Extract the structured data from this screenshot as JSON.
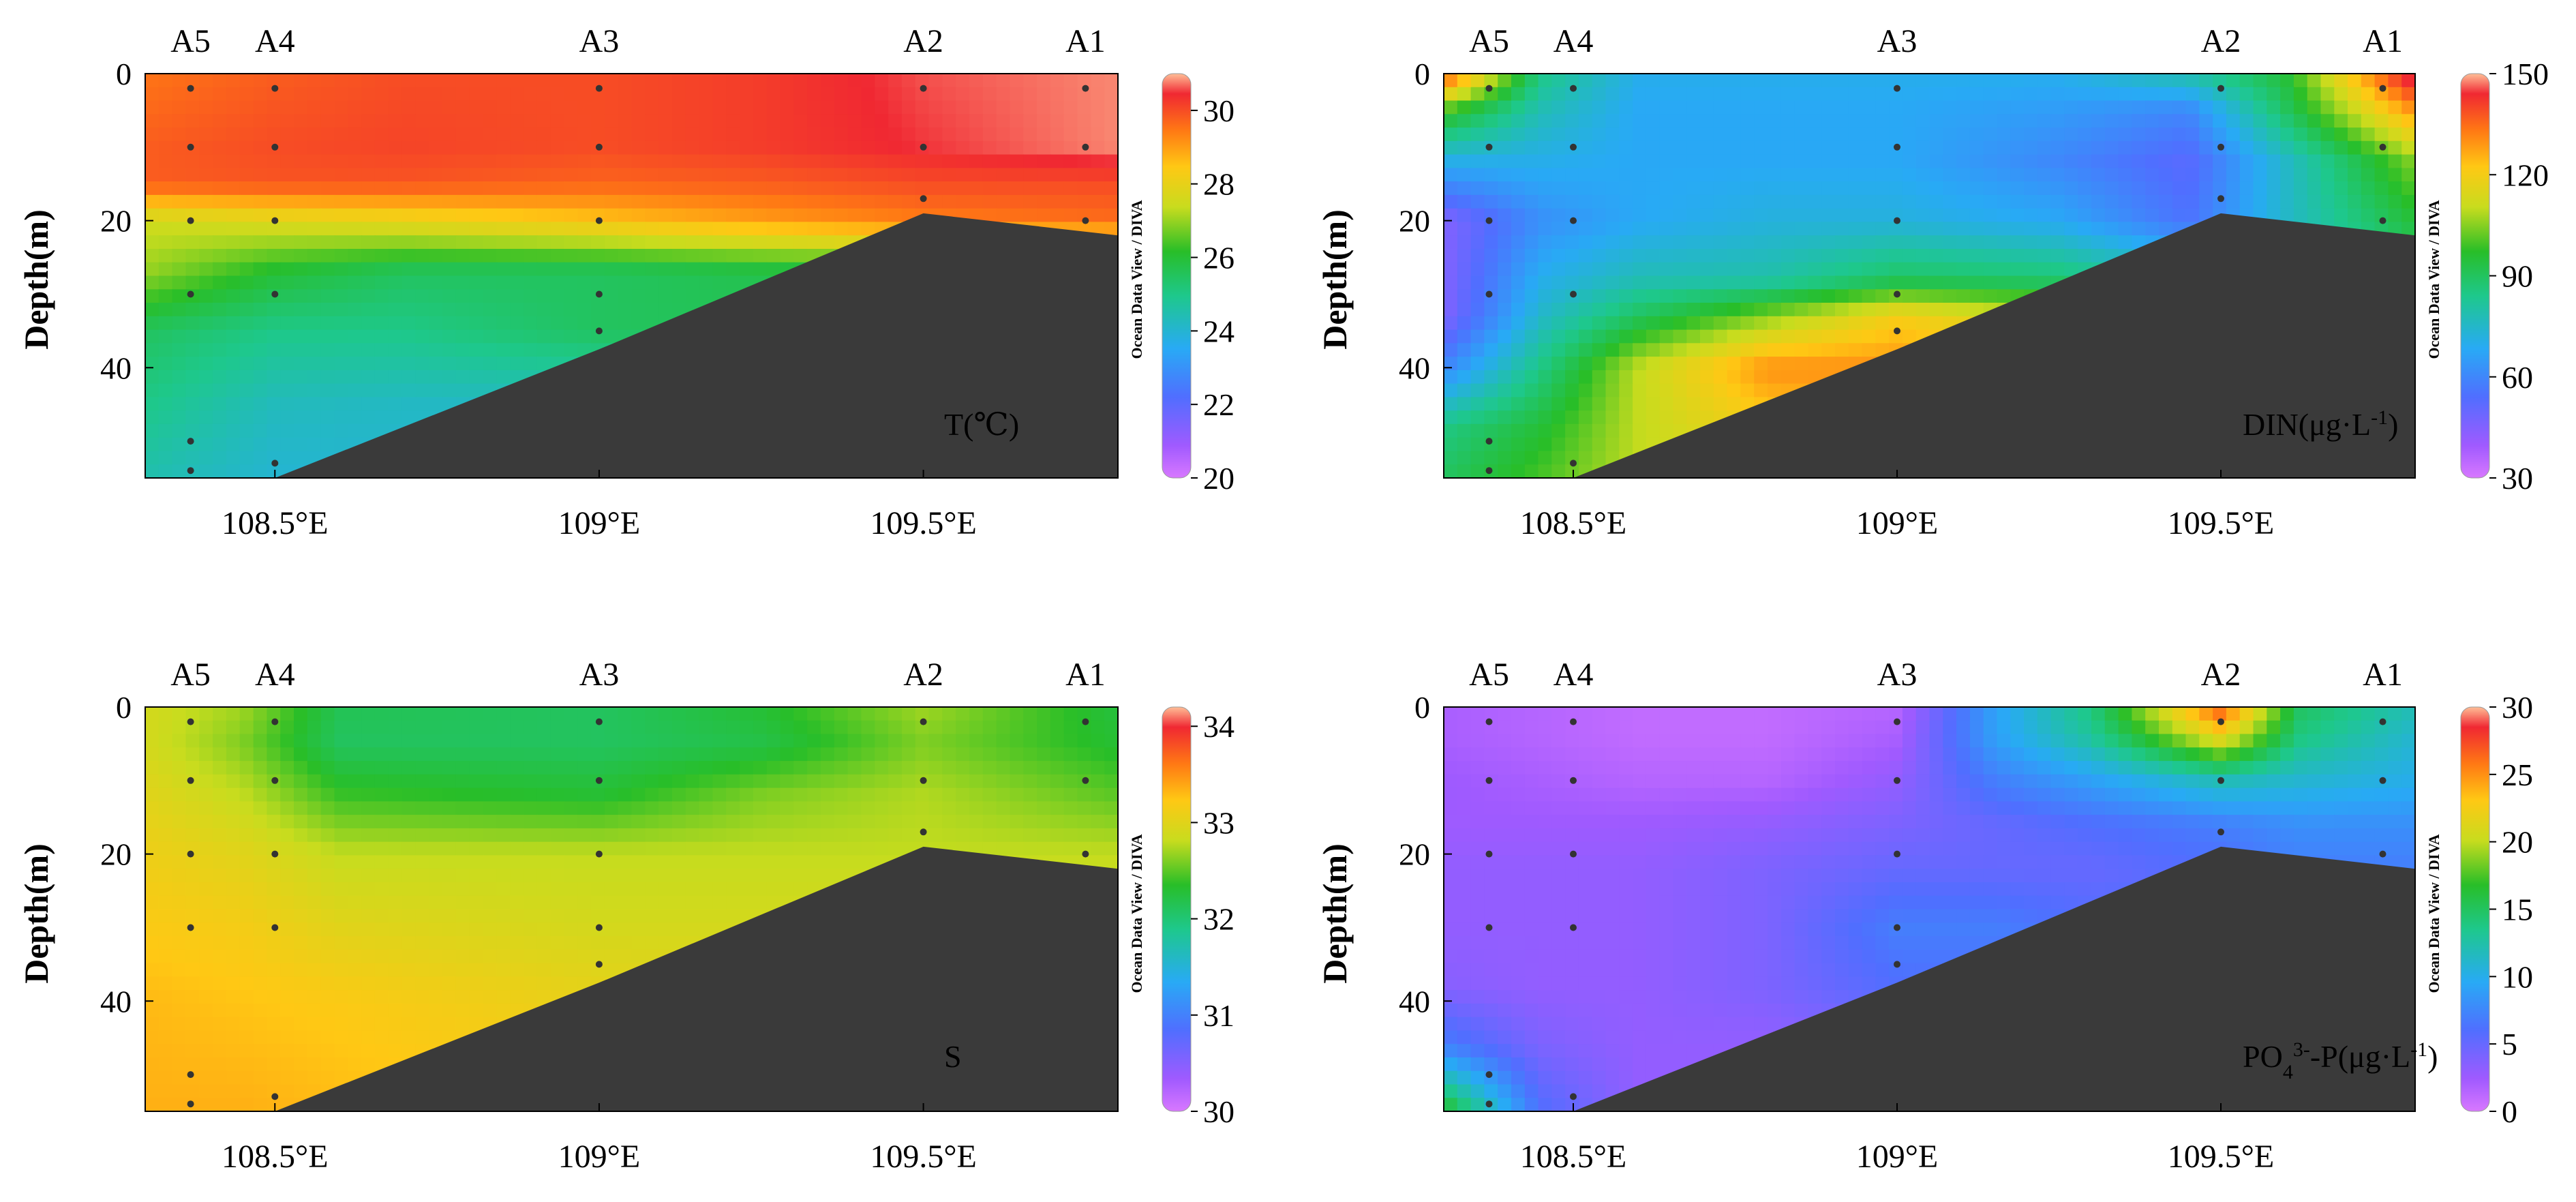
{
  "figure": {
    "stations": [
      "A5",
      "A4",
      "A3",
      "A2",
      "A1"
    ],
    "ylabel": "Depth(m)",
    "colorbar_label": "Ocean Data View / DIVA"
  },
  "chart_data": [
    {
      "type": "heatmap",
      "id": "temperature",
      "title": "T(℃)",
      "title_parts": [
        {
          "text": "T(℃)",
          "super": false
        }
      ],
      "xlabel": "",
      "ylabel": "Depth(m)",
      "xlim": [
        108.3,
        109.8
      ],
      "ylim": [
        55,
        0
      ],
      "x_ticks": [
        108.5,
        109.0,
        109.5
      ],
      "x_tick_labels": [
        "108.5°E",
        "109°E",
        "109.5°E"
      ],
      "y_ticks": [
        0,
        20,
        40
      ],
      "y_tick_labels": [
        "0",
        "20",
        "40"
      ],
      "station_lons": [
        108.37,
        108.5,
        109.0,
        109.5,
        109.75
      ],
      "station_names": [
        "A5",
        "A4",
        "A3",
        "A2",
        "A1"
      ],
      "sample_points": [
        [
          108.37,
          2
        ],
        [
          108.37,
          10
        ],
        [
          108.37,
          20
        ],
        [
          108.37,
          30
        ],
        [
          108.37,
          50
        ],
        [
          108.37,
          54
        ],
        [
          108.5,
          2
        ],
        [
          108.5,
          10
        ],
        [
          108.5,
          20
        ],
        [
          108.5,
          30
        ],
        [
          108.5,
          53
        ],
        [
          109.0,
          2
        ],
        [
          109.0,
          10
        ],
        [
          109.0,
          20
        ],
        [
          109.0,
          30
        ],
        [
          109.0,
          35
        ],
        [
          109.5,
          2
        ],
        [
          109.5,
          10
        ],
        [
          109.5,
          17
        ],
        [
          109.75,
          2
        ],
        [
          109.75,
          10
        ],
        [
          109.75,
          20
        ]
      ],
      "seabed": [
        [
          108.5,
          55
        ],
        [
          109.0,
          37.5
        ],
        [
          109.5,
          19
        ],
        [
          109.8,
          22
        ]
      ],
      "grid_x": [
        108.3,
        108.5,
        108.7,
        109.0,
        109.25,
        109.5,
        109.8
      ],
      "grid_y": [
        0,
        10,
        15,
        20,
        27,
        35,
        45,
        55
      ],
      "grid_values": [
        [
          29.5,
          29.8,
          30.0,
          30.0,
          30.2,
          30.6,
          30.8
        ],
        [
          29.8,
          30.0,
          30.1,
          30.0,
          30.2,
          30.5,
          30.8
        ],
        [
          29.8,
          29.9,
          29.9,
          29.7,
          29.8,
          30.0,
          30.0
        ],
        [
          27.5,
          27.8,
          28.0,
          28.5,
          29.0,
          29.4,
          29.6
        ],
        [
          27.0,
          26.0,
          25.5,
          25.5,
          25.7,
          25.8,
          25.8
        ],
        [
          25.5,
          25.0,
          25.0,
          25.5,
          25.6,
          25.6,
          25.6
        ],
        [
          25.0,
          24.3,
          24.2,
          24.2,
          24.2,
          24.2,
          24.2
        ],
        [
          24.5,
          24.0,
          24.0,
          24.0,
          24.0,
          24.0,
          24.0
        ]
      ],
      "colorbar": {
        "min": 20,
        "max": 31,
        "ticks": [
          20,
          22,
          24,
          26,
          28,
          30
        ],
        "tick_labels": [
          "20",
          "22",
          "24",
          "26",
          "28",
          "30"
        ]
      }
    },
    {
      "type": "heatmap",
      "id": "din",
      "title": "DIN(μg·L-1)",
      "title_parts": [
        {
          "text": "DIN(μg·L",
          "super": false
        },
        {
          "text": "-1",
          "super": true
        },
        {
          "text": ")",
          "super": false
        }
      ],
      "xlabel": "",
      "ylabel": "Depth(m)",
      "xlim": [
        108.3,
        109.8
      ],
      "ylim": [
        55,
        0
      ],
      "x_ticks": [
        108.5,
        109.0,
        109.5
      ],
      "x_tick_labels": [
        "108.5°E",
        "109°E",
        "109.5°E"
      ],
      "y_ticks": [
        0,
        20,
        40
      ],
      "y_tick_labels": [
        "0",
        "20",
        "40"
      ],
      "station_lons": [
        108.37,
        108.5,
        109.0,
        109.5,
        109.75
      ],
      "station_names": [
        "A5",
        "A4",
        "A3",
        "A2",
        "A1"
      ],
      "sample_points": [
        [
          108.37,
          2
        ],
        [
          108.37,
          10
        ],
        [
          108.37,
          20
        ],
        [
          108.37,
          30
        ],
        [
          108.37,
          50
        ],
        [
          108.37,
          54
        ],
        [
          108.5,
          2
        ],
        [
          108.5,
          10
        ],
        [
          108.5,
          20
        ],
        [
          108.5,
          30
        ],
        [
          108.5,
          53
        ],
        [
          109.0,
          2
        ],
        [
          109.0,
          10
        ],
        [
          109.0,
          20
        ],
        [
          109.0,
          30
        ],
        [
          109.0,
          35
        ],
        [
          109.5,
          2
        ],
        [
          109.5,
          10
        ],
        [
          109.5,
          17
        ],
        [
          109.75,
          2
        ],
        [
          109.75,
          10
        ],
        [
          109.75,
          20
        ]
      ],
      "seabed": [
        [
          108.5,
          55
        ],
        [
          109.0,
          37.5
        ],
        [
          109.5,
          19
        ],
        [
          109.8,
          22
        ]
      ],
      "grid_x": [
        108.3,
        108.45,
        108.6,
        108.8,
        109.0,
        109.25,
        109.45,
        109.6,
        109.8
      ],
      "grid_y": [
        0,
        5,
        12,
        20,
        28,
        33,
        40,
        48,
        55
      ],
      "grid_values": [
        [
          140,
          85,
          70,
          70,
          70,
          70,
          80,
          95,
          150
        ],
        [
          100,
          78,
          68,
          68,
          68,
          65,
          60,
          90,
          130
        ],
        [
          70,
          70,
          68,
          68,
          68,
          60,
          52,
          75,
          105
        ],
        [
          45,
          62,
          68,
          72,
          72,
          68,
          55,
          75,
          95
        ],
        [
          45,
          70,
          78,
          80,
          90,
          88,
          80,
          80,
          85
        ],
        [
          45,
          75,
          90,
          105,
          120,
          110,
          100,
          95,
          95
        ],
        [
          60,
          85,
          110,
          130,
          130,
          125,
          115,
          110,
          110
        ],
        [
          85,
          95,
          110,
          120,
          125,
          120,
          115,
          110,
          110
        ],
        [
          90,
          100,
          110,
          115,
          120,
          115,
          110,
          110,
          110
        ]
      ],
      "colorbar": {
        "min": 30,
        "max": 150,
        "ticks": [
          30,
          60,
          90,
          120,
          150
        ],
        "tick_labels": [
          "30",
          "60",
          "90",
          "120",
          "150"
        ]
      }
    },
    {
      "type": "heatmap",
      "id": "salinity",
      "title": "S",
      "title_parts": [
        {
          "text": "S",
          "super": false
        }
      ],
      "xlabel": "",
      "ylabel": "Depth(m)",
      "xlim": [
        108.3,
        109.8
      ],
      "ylim": [
        55,
        0
      ],
      "x_ticks": [
        108.5,
        109.0,
        109.5
      ],
      "x_tick_labels": [
        "108.5°E",
        "109°E",
        "109.5°E"
      ],
      "y_ticks": [
        0,
        20,
        40
      ],
      "y_tick_labels": [
        "0",
        "20",
        "40"
      ],
      "station_lons": [
        108.37,
        108.5,
        109.0,
        109.5,
        109.75
      ],
      "station_names": [
        "A5",
        "A4",
        "A3",
        "A2",
        "A1"
      ],
      "sample_points": [
        [
          108.37,
          2
        ],
        [
          108.37,
          10
        ],
        [
          108.37,
          20
        ],
        [
          108.37,
          30
        ],
        [
          108.37,
          50
        ],
        [
          108.37,
          54
        ],
        [
          108.5,
          2
        ],
        [
          108.5,
          10
        ],
        [
          108.5,
          20
        ],
        [
          108.5,
          30
        ],
        [
          108.5,
          53
        ],
        [
          109.0,
          2
        ],
        [
          109.0,
          10
        ],
        [
          109.0,
          20
        ],
        [
          109.0,
          30
        ],
        [
          109.0,
          35
        ],
        [
          109.5,
          2
        ],
        [
          109.5,
          10
        ],
        [
          109.5,
          17
        ],
        [
          109.75,
          2
        ],
        [
          109.75,
          10
        ],
        [
          109.75,
          20
        ]
      ],
      "seabed": [
        [
          108.5,
          55
        ],
        [
          109.0,
          37.5
        ],
        [
          109.5,
          19
        ],
        [
          109.8,
          22
        ]
      ],
      "grid_x": [
        108.3,
        108.45,
        108.6,
        109.0,
        109.25,
        109.5,
        109.8
      ],
      "grid_y": [
        0,
        5,
        12,
        20,
        30,
        40,
        55
      ],
      "grid_values": [
        [
          32.9,
          32.7,
          32.15,
          32.1,
          32.3,
          32.7,
          32.25
        ],
        [
          32.9,
          32.6,
          32.1,
          32.1,
          32.2,
          32.6,
          32.3
        ],
        [
          33.0,
          32.8,
          32.4,
          32.3,
          32.6,
          32.75,
          32.5
        ],
        [
          33.1,
          33.0,
          32.8,
          32.8,
          32.8,
          32.8,
          32.8
        ],
        [
          33.2,
          33.15,
          33.0,
          32.9,
          32.9,
          32.9,
          32.9
        ],
        [
          33.3,
          33.25,
          33.2,
          33.05,
          33.0,
          33.0,
          33.0
        ],
        [
          33.35,
          33.35,
          33.3,
          33.2,
          33.1,
          33.1,
          33.1
        ]
      ],
      "colorbar": {
        "min": 30,
        "max": 34.2,
        "ticks": [
          30,
          31,
          32,
          33,
          34
        ],
        "tick_labels": [
          "30",
          "31",
          "32",
          "33",
          "34"
        ]
      }
    },
    {
      "type": "heatmap",
      "id": "phosphate",
      "title": "PO43--P(μg·L-1)",
      "title_parts": [
        {
          "text": "PO",
          "super": false
        },
        {
          "text": "4",
          "sub": true
        },
        {
          "text": "3-",
          "super": true
        },
        {
          "text": "-P(μg·L",
          "super": false
        },
        {
          "text": "-1",
          "super": true
        },
        {
          "text": ")",
          "super": false
        }
      ],
      "xlabel": "",
      "ylabel": "Depth(m)",
      "xlim": [
        108.3,
        109.8
      ],
      "ylim": [
        55,
        0
      ],
      "x_ticks": [
        108.5,
        109.0,
        109.5
      ],
      "x_tick_labels": [
        "108.5°E",
        "109°E",
        "109.5°E"
      ],
      "y_ticks": [
        0,
        20,
        40
      ],
      "y_tick_labels": [
        "0",
        "20",
        "40"
      ],
      "station_lons": [
        108.37,
        108.5,
        109.0,
        109.5,
        109.75
      ],
      "station_names": [
        "A5",
        "A4",
        "A3",
        "A2",
        "A1"
      ],
      "sample_points": [
        [
          108.37,
          2
        ],
        [
          108.37,
          10
        ],
        [
          108.37,
          20
        ],
        [
          108.37,
          30
        ],
        [
          108.37,
          50
        ],
        [
          108.37,
          54
        ],
        [
          108.5,
          2
        ],
        [
          108.5,
          10
        ],
        [
          108.5,
          20
        ],
        [
          108.5,
          30
        ],
        [
          108.5,
          53
        ],
        [
          109.0,
          2
        ],
        [
          109.0,
          10
        ],
        [
          109.0,
          20
        ],
        [
          109.0,
          30
        ],
        [
          109.0,
          35
        ],
        [
          109.5,
          2
        ],
        [
          109.5,
          10
        ],
        [
          109.5,
          17
        ],
        [
          109.75,
          2
        ],
        [
          109.75,
          10
        ],
        [
          109.75,
          20
        ]
      ],
      "seabed": [
        [
          108.5,
          55
        ],
        [
          109.0,
          37.5
        ],
        [
          109.5,
          19
        ],
        [
          109.8,
          22
        ]
      ],
      "grid_x": [
        108.3,
        108.45,
        108.6,
        108.8,
        109.0,
        109.15,
        109.3,
        109.5,
        109.62,
        109.8
      ],
      "grid_y": [
        0,
        4,
        10,
        16,
        22,
        30,
        38,
        46,
        55
      ],
      "grid_values": [
        [
          2,
          1.5,
          1,
          1,
          1.5,
          9,
          14,
          27,
          15,
          12
        ],
        [
          2,
          1.5,
          1,
          1,
          2,
          9,
          13,
          22,
          14,
          11
        ],
        [
          2.5,
          2,
          1.5,
          1.5,
          3,
          7,
          9,
          12,
          11,
          10
        ],
        [
          2.5,
          2.5,
          2.5,
          3,
          4,
          5,
          6,
          7,
          8,
          8
        ],
        [
          3,
          3,
          3,
          4,
          5,
          5,
          5,
          6,
          7,
          7
        ],
        [
          3,
          3,
          3,
          4,
          7,
          7,
          6,
          6,
          6,
          6
        ],
        [
          3.5,
          3,
          3,
          4,
          6,
          6,
          6,
          6,
          6,
          6
        ],
        [
          7,
          4,
          3,
          3,
          4,
          5,
          5,
          5,
          5,
          5
        ],
        [
          17,
          6,
          3,
          3,
          3,
          4,
          4,
          4,
          4,
          4
        ]
      ],
      "colorbar": {
        "min": 0,
        "max": 30,
        "ticks": [
          0,
          5,
          10,
          15,
          20,
          25,
          30
        ],
        "tick_labels": [
          "0",
          "5",
          "10",
          "15",
          "20",
          "25",
          "30"
        ]
      }
    }
  ]
}
